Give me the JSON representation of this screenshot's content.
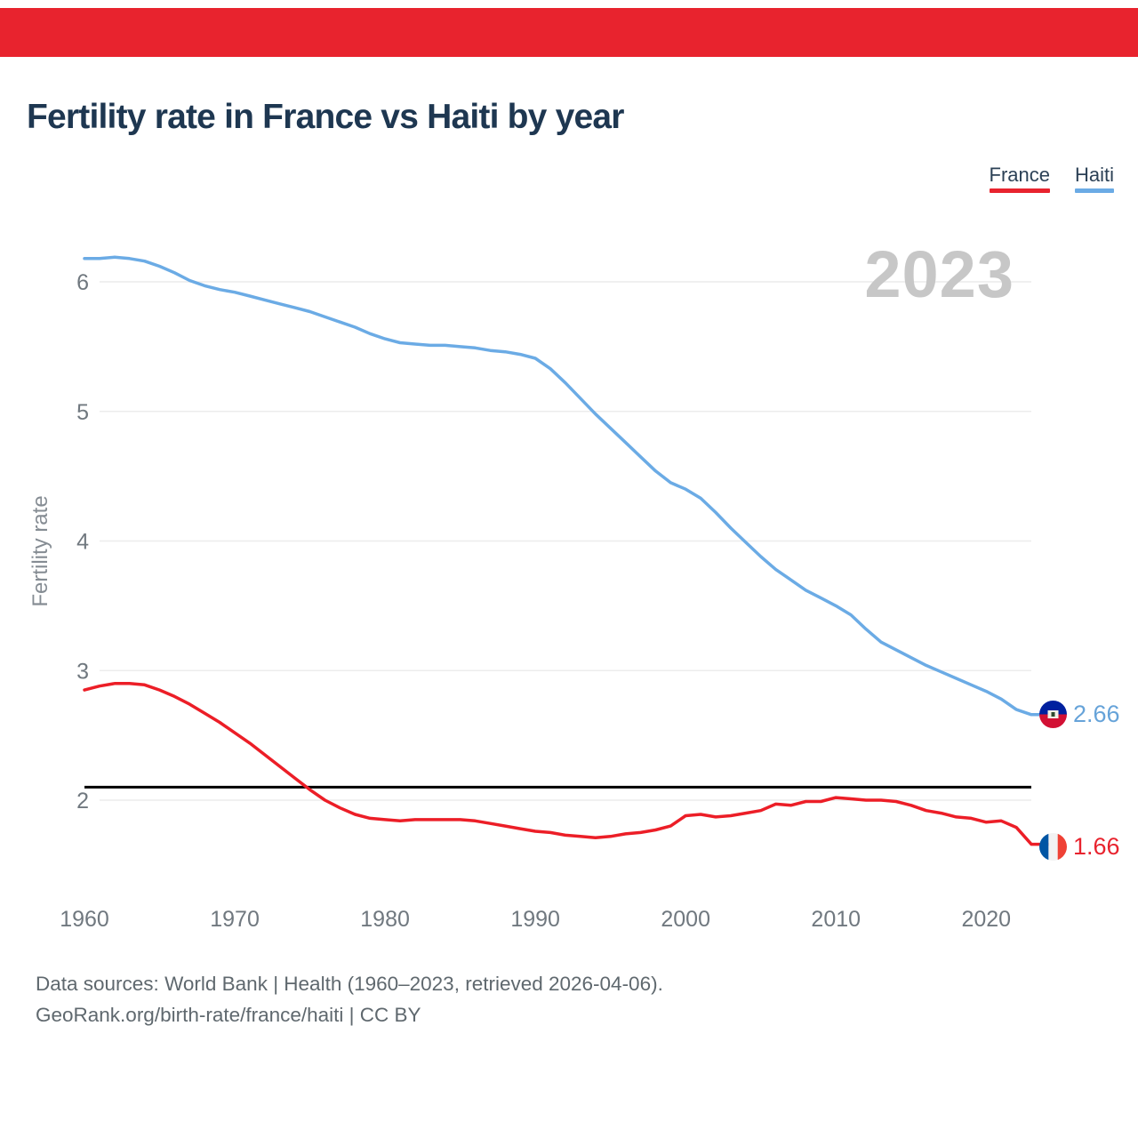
{
  "header": {
    "title": "Fertility rate in France vs Haiti by year"
  },
  "legend": {
    "items": [
      {
        "label": "France",
        "color": "#e8232e"
      },
      {
        "label": "Haiti",
        "color": "#6babe5"
      }
    ]
  },
  "watermark": "2023",
  "end_labels": [
    {
      "series": "Haiti",
      "value": "2.66"
    },
    {
      "series": "France",
      "value": "1.66"
    }
  ],
  "footer": {
    "line1": "Data sources: World Bank | Health (1960–2023, retrieved 2026-04-06).",
    "line2": "GeoRank.org/birth-rate/france/haiti | CC BY"
  },
  "colors": {
    "banner": "#e8232e",
    "france_line": "#ec1e27",
    "haiti_line": "#6babe5",
    "reference_line": "#000000",
    "gridline": "#ececec",
    "title_text": "#1e3751",
    "tick_text": "#70787f",
    "watermark_text": "#c7c7c7",
    "haiti_value_text": "#66a3d9",
    "france_value_text": "#e8232e"
  },
  "chart_data": {
    "type": "line",
    "title": "Fertility rate in France vs Haiti by year",
    "xlabel": "",
    "ylabel": "Fertility rate",
    "grid": true,
    "legend_position": "top-right",
    "xlim": [
      1960,
      2023
    ],
    "ylim": [
      1.45,
      6.45
    ],
    "xticks": [
      1960,
      1970,
      1980,
      1990,
      2000,
      2010,
      2020
    ],
    "yticks": [
      2,
      3,
      4,
      5,
      6
    ],
    "reference_line": {
      "value": 2.1,
      "color": "#000000"
    },
    "x": [
      1960,
      1961,
      1962,
      1963,
      1964,
      1965,
      1966,
      1967,
      1968,
      1969,
      1970,
      1971,
      1972,
      1973,
      1974,
      1975,
      1976,
      1977,
      1978,
      1979,
      1980,
      1981,
      1982,
      1983,
      1984,
      1985,
      1986,
      1987,
      1988,
      1989,
      1990,
      1991,
      1992,
      1993,
      1994,
      1995,
      1996,
      1997,
      1998,
      1999,
      2000,
      2001,
      2002,
      2003,
      2004,
      2005,
      2006,
      2007,
      2008,
      2009,
      2010,
      2011,
      2012,
      2013,
      2014,
      2015,
      2016,
      2017,
      2018,
      2019,
      2020,
      2021,
      2022,
      2023
    ],
    "series": [
      {
        "name": "France",
        "color": "#ec1e27",
        "values": [
          2.85,
          2.88,
          2.9,
          2.9,
          2.89,
          2.85,
          2.8,
          2.74,
          2.67,
          2.6,
          2.52,
          2.44,
          2.35,
          2.26,
          2.17,
          2.08,
          2.0,
          1.94,
          1.89,
          1.86,
          1.85,
          1.84,
          1.85,
          1.85,
          1.85,
          1.85,
          1.84,
          1.82,
          1.8,
          1.78,
          1.76,
          1.75,
          1.73,
          1.72,
          1.71,
          1.72,
          1.74,
          1.75,
          1.77,
          1.8,
          1.88,
          1.89,
          1.87,
          1.88,
          1.9,
          1.92,
          1.97,
          1.96,
          1.99,
          1.99,
          2.02,
          2.01,
          2.0,
          2.0,
          1.99,
          1.96,
          1.92,
          1.9,
          1.87,
          1.86,
          1.83,
          1.84,
          1.79,
          1.66
        ]
      },
      {
        "name": "Haiti",
        "color": "#6babe5",
        "values": [
          6.18,
          6.18,
          6.19,
          6.18,
          6.16,
          6.12,
          6.07,
          6.01,
          5.97,
          5.94,
          5.92,
          5.89,
          5.86,
          5.83,
          5.8,
          5.77,
          5.73,
          5.69,
          5.65,
          5.6,
          5.56,
          5.53,
          5.52,
          5.51,
          5.51,
          5.5,
          5.49,
          5.47,
          5.46,
          5.44,
          5.41,
          5.33,
          5.22,
          5.1,
          4.98,
          4.87,
          4.76,
          4.65,
          4.54,
          4.45,
          4.4,
          4.33,
          4.22,
          4.1,
          3.99,
          3.88,
          3.78,
          3.7,
          3.62,
          3.56,
          3.5,
          3.43,
          3.32,
          3.22,
          3.16,
          3.1,
          3.04,
          2.99,
          2.94,
          2.89,
          2.84,
          2.78,
          2.7,
          2.66
        ]
      }
    ],
    "end_markers": [
      {
        "series": "Haiti",
        "value": 2.66
      },
      {
        "series": "France",
        "value": 1.66
      }
    ]
  }
}
